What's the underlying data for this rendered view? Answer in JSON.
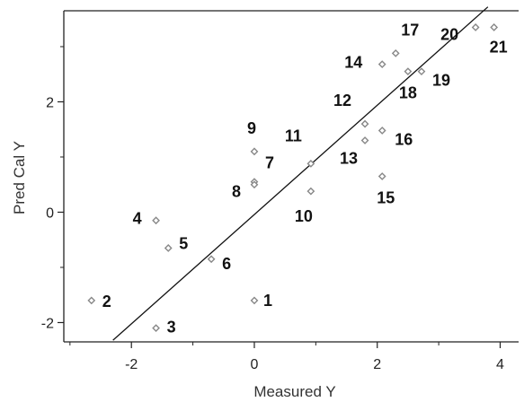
{
  "chart_data": {
    "type": "scatter",
    "xlabel": "Measured Y",
    "ylabel": "Pred Cal Y",
    "xlim": [
      -3.1,
      4.3
    ],
    "ylim": [
      -2.35,
      3.65
    ],
    "xticks": [
      -2,
      0,
      2,
      4
    ],
    "yticks": [
      -2,
      0,
      2
    ],
    "x_minor_ticks": [
      -3,
      -1,
      1,
      3
    ],
    "y_minor_ticks": [
      -1,
      1,
      3
    ],
    "grid": false,
    "marker_color": "#888888",
    "line_color": "#111111",
    "fit_line": {
      "x": [
        -2.3,
        3.8
      ],
      "y": [
        -2.32,
        3.72
      ]
    },
    "points": [
      {
        "label": "1",
        "x": 0.0,
        "y": -1.6
      },
      {
        "label": "2",
        "x": -2.65,
        "y": -1.6
      },
      {
        "label": "3",
        "x": -1.6,
        "y": -2.1
      },
      {
        "label": "4",
        "x": -1.6,
        "y": -0.15
      },
      {
        "label": "5",
        "x": -1.4,
        "y": -0.65
      },
      {
        "label": "6",
        "x": -0.7,
        "y": -0.85
      },
      {
        "label": "7",
        "x": 0.0,
        "y": 0.55
      },
      {
        "label": "8",
        "x": 0.0,
        "y": 0.5
      },
      {
        "label": "9",
        "x": 0.0,
        "y": 1.1
      },
      {
        "label": "10",
        "x": 0.92,
        "y": 0.38
      },
      {
        "label": "11",
        "x": 0.92,
        "y": 0.88
      },
      {
        "label": "12",
        "x": 1.8,
        "y": 1.6
      },
      {
        "label": "13",
        "x": 1.8,
        "y": 1.3
      },
      {
        "label": "14",
        "x": 2.08,
        "y": 2.68
      },
      {
        "label": "15",
        "x": 2.08,
        "y": 0.65
      },
      {
        "label": "16",
        "x": 2.08,
        "y": 1.48
      },
      {
        "label": "17",
        "x": 2.3,
        "y": 2.88
      },
      {
        "label": "18",
        "x": 2.5,
        "y": 2.55
      },
      {
        "label": "19",
        "x": 2.72,
        "y": 2.55
      },
      {
        "label": "20",
        "x": 3.6,
        "y": 3.35
      },
      {
        "label": "21",
        "x": 3.9,
        "y": 3.35
      }
    ]
  }
}
